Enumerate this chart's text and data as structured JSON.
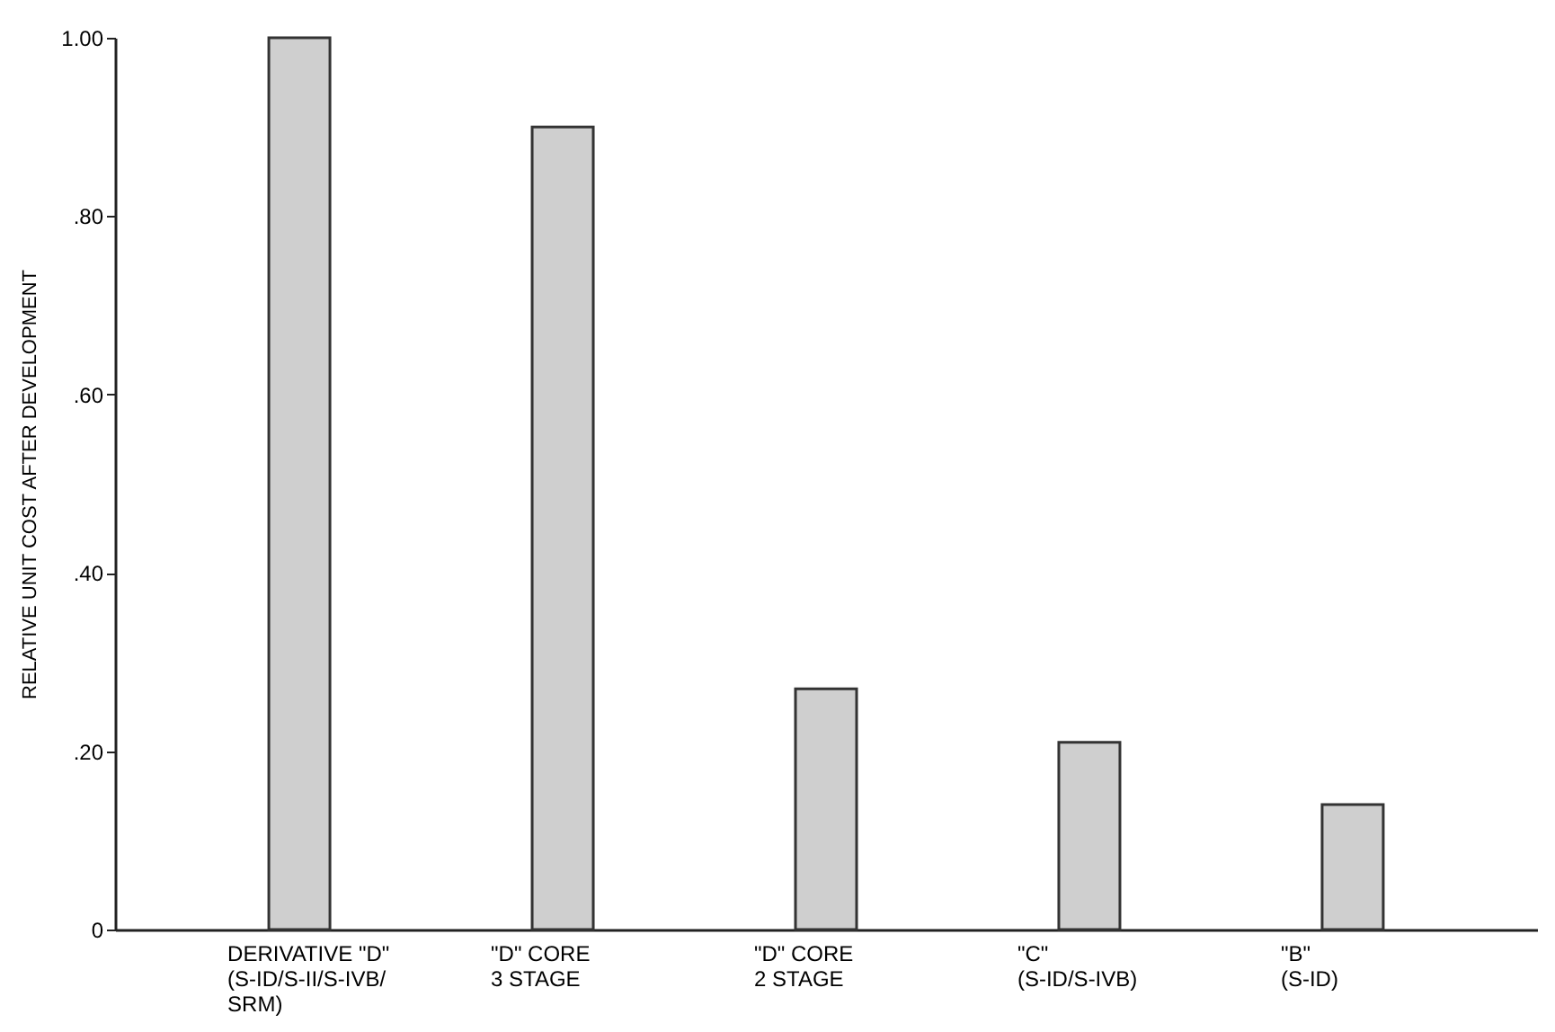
{
  "chart_data": {
    "type": "bar",
    "ylabel": "RELATIVE UNIT COST AFTER DEVELOPMENT",
    "categories": [
      "DERIVATIVE \"D\"\n(S-ID/S-II/S-IVB/\nSRM)",
      "\"D\" CORE\n3 STAGE",
      "\"D\" CORE\n2 STAGE",
      "\"C\"\n(S-ID/S-IVB)",
      "\"B\"\n(S-ID)"
    ],
    "values": [
      1.0,
      0.9,
      0.27,
      0.21,
      0.14
    ],
    "color": "#cfcfcf",
    "ylim": [
      0,
      1.0
    ],
    "yticks": [
      0,
      {
        "value": 0.2,
        "label": ".20"
      },
      {
        "value": 0.4,
        "label": ".40"
      },
      {
        "value": 0.6,
        "label": ".60"
      },
      {
        "value": 0.8,
        "label": ".80"
      },
      {
        "value": 1.0,
        "label": "1.00"
      }
    ],
    "grid": false
  }
}
